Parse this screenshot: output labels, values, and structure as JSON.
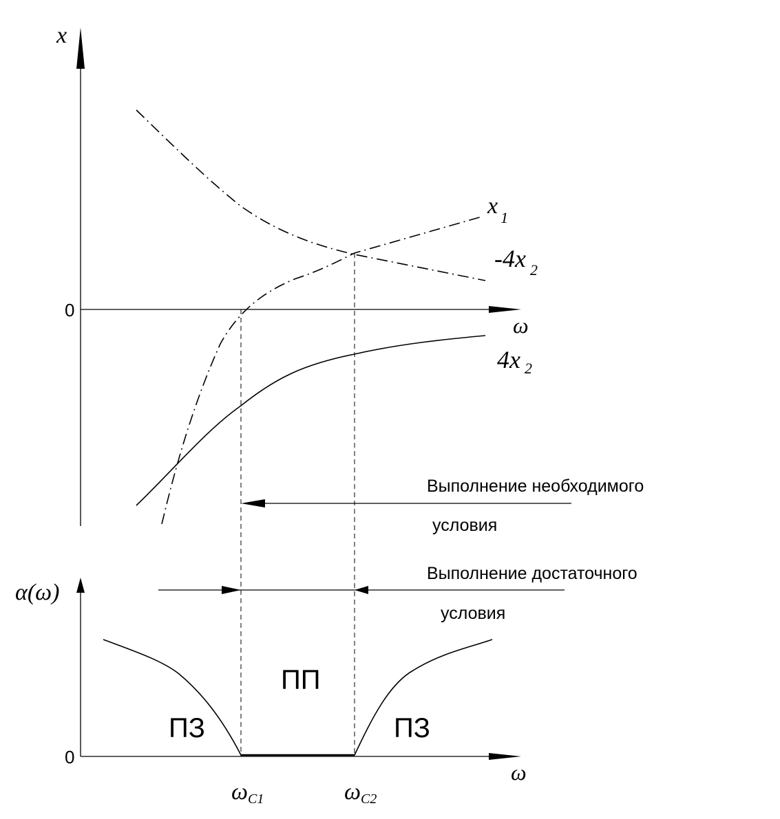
{
  "upper_plot": {
    "y_axis_label": "x",
    "x_axis_label": "ω",
    "origin_label": "0",
    "curves": [
      {
        "label_main": "x",
        "label_sub": "1",
        "style": "dash-dot"
      },
      {
        "label_main": "-4x",
        "label_sub": "2",
        "style": "dash-dot"
      },
      {
        "label_main": "4x",
        "label_sub": "2",
        "style": "solid"
      }
    ]
  },
  "annotations": {
    "necessary_line1": "Выполнение необходимого",
    "necessary_line2": "условия",
    "sufficient_line1": "Выполнение достаточного",
    "sufficient_line2": "условия"
  },
  "lower_plot": {
    "y_axis_label": "α(ω)",
    "x_axis_label": "ω",
    "origin_label": "0",
    "regions": [
      "ПЗ",
      "ПП",
      "ПЗ"
    ],
    "cutoffs": [
      {
        "main": "ω",
        "sub": "C1"
      },
      {
        "main": "ω",
        "sub": "C2"
      }
    ]
  },
  "colors": {
    "ink": "#000000",
    "background": "#ffffff"
  }
}
